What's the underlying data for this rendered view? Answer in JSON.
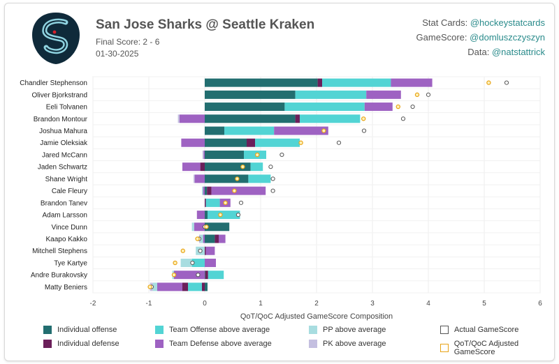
{
  "header": {
    "title": "San Jose Sharks @ Seattle Kraken",
    "final_score": "Final Score: 2 - 6",
    "date": "01-30-2025",
    "credits": [
      {
        "label": "Stat Cards:",
        "handle": "@hockeystatcards"
      },
      {
        "label": "GameScore:",
        "handle": "@domluszczyszyn"
      },
      {
        "label": "Data:",
        "handle": "@natstattrick"
      }
    ]
  },
  "colors": {
    "individual_offense": "#226e70",
    "individual_defense": "#6b1f5a",
    "team_offense": "#52d4d4",
    "team_defense": "#9e62c2",
    "pp": "#a8dde0",
    "pk": "#c4bfe0",
    "actual_marker": "#555555",
    "adjusted_marker": "#e8a316"
  },
  "chart_data": {
    "type": "bar",
    "orientation": "horizontal",
    "stacked": true,
    "xlabel": "QoT/QoC Adjusted GameScore Composition",
    "xlim": [
      -2,
      6
    ],
    "xticks": [
      -2,
      -1,
      0,
      1,
      2,
      3,
      4,
      5,
      6
    ],
    "grid": true,
    "categories": [
      "Chandler Stephenson",
      "Oliver Bjorkstrand",
      "Eeli Tolvanen",
      "Brandon Montour",
      "Joshua Mahura",
      "Jamie Oleksiak",
      "Jared McCann",
      "Jaden Schwartz",
      "Shane Wright",
      "Cale Fleury",
      "Brandon Tanev",
      "Adam Larsson",
      "Vince Dunn",
      "Kaapo Kakko",
      "Mitchell Stephens",
      "Tye Kartye",
      "Andre Burakovsky",
      "Matty Beniers"
    ],
    "series": [
      {
        "name": "Individual offense",
        "values": [
          2.02,
          1.62,
          1.43,
          1.62,
          0.35,
          0.75,
          0.7,
          0.82,
          0.78,
          0.04,
          0.0,
          0.05,
          0.44,
          0.18,
          0.0,
          0.0,
          0.01,
          0.05
        ]
      },
      {
        "name": "Individual defense",
        "values": [
          0.08,
          0.0,
          0.0,
          0.08,
          0.0,
          0.15,
          0.0,
          0.0,
          0.0,
          0.08,
          0.02,
          0.0,
          0.0,
          0.07,
          0.02,
          0.0,
          0.05,
          -0.05
        ]
      },
      {
        "name": "Team Offense above average",
        "values": [
          1.23,
          1.27,
          1.43,
          1.08,
          0.89,
          0.8,
          0.4,
          0.22,
          0.4,
          0.0,
          0.25,
          0.58,
          0.0,
          0.0,
          0.0,
          -0.23,
          0.28,
          -0.25
        ]
      },
      {
        "name": "Team Defense above average",
        "values": [
          0.74,
          0.62,
          0.5,
          0.0,
          0.97,
          0.0,
          0.0,
          0.0,
          0.0,
          0.97,
          0.19,
          0.0,
          0.0,
          0.12,
          0.16,
          0.2,
          0.0,
          0.0
        ]
      },
      {
        "name": "Individual defense",
        "values": [
          0.0,
          0.0,
          0.0,
          0.0,
          0.0,
          0.0,
          0.0,
          -0.08,
          0.0,
          0.0,
          0.0,
          0.0,
          0.0,
          0.0,
          0.0,
          0.0,
          0.0,
          -0.1
        ]
      },
      {
        "name": "Team Defense above average",
        "values": [
          0.0,
          0.0,
          0.0,
          -0.45,
          0.0,
          -0.42,
          -0.02,
          -0.32,
          -0.18,
          -0.03,
          0.0,
          -0.14,
          -0.19,
          -0.03,
          0.0,
          0.0,
          -0.55,
          -0.45
        ]
      },
      {
        "name": "PP above average",
        "values": [
          0.0,
          0.0,
          0.0,
          0.0,
          0.0,
          0.0,
          0.0,
          0.0,
          0.0,
          -0.02,
          0.0,
          0.0,
          -0.04,
          -0.05,
          -0.16,
          -0.2,
          -0.03,
          -0.08
        ]
      },
      {
        "name": "PK above average",
        "values": [
          0.0,
          0.0,
          0.0,
          -0.03,
          0.0,
          0.0,
          -0.02,
          0.0,
          -0.02,
          0.0,
          0.0,
          0.0,
          0.0,
          -0.02,
          0.0,
          0.0,
          0.0,
          -0.05
        ]
      }
    ],
    "actual_gamescore": [
      5.4,
      4.0,
      3.72,
      3.55,
      2.85,
      2.4,
      1.38,
      1.18,
      1.22,
      1.22,
      0.65,
      0.6,
      0.0,
      -0.1,
      -0.08,
      -0.22,
      -0.12,
      -0.95
    ],
    "adjusted_gamescore": [
      5.08,
      3.8,
      3.46,
      2.84,
      2.13,
      1.72,
      0.94,
      0.68,
      0.58,
      0.53,
      0.37,
      0.28,
      0.03,
      -0.13,
      -0.39,
      -0.53,
      -0.55,
      -0.98
    ],
    "legend": [
      {
        "key": "individual_offense",
        "label": "Individual offense",
        "kind": "box"
      },
      {
        "key": "team_offense",
        "label": "Team Offense above average",
        "kind": "box"
      },
      {
        "key": "pp",
        "label": "PP above average",
        "kind": "box"
      },
      {
        "key": "actual_marker",
        "label": "Actual GameScore",
        "kind": "outline"
      },
      {
        "key": "individual_defense",
        "label": "Individual defense",
        "kind": "box"
      },
      {
        "key": "team_defense",
        "label": "Team Defense above average",
        "kind": "box"
      },
      {
        "key": "pk",
        "label": "PK above average",
        "kind": "box"
      },
      {
        "key": "adjusted_marker",
        "label": "QoT/QoC Adjusted GameScore",
        "kind": "outline"
      }
    ],
    "legend_position": "bottom"
  }
}
